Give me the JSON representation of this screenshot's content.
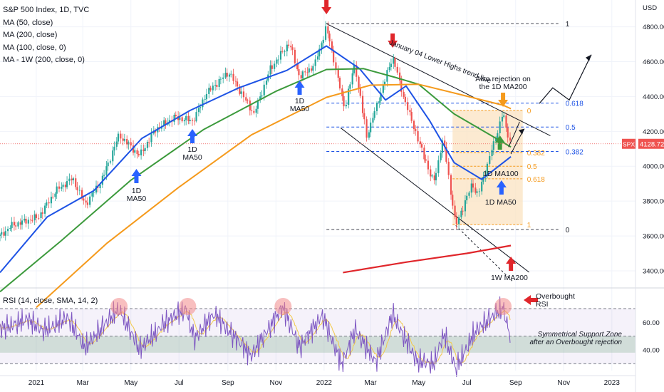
{
  "legend": {
    "title": "S&P 500 Index, 1D, TVC",
    "lines": [
      "MA (50, close)",
      "MA (200, close)",
      "MA (100, close, 0)",
      "MA - 1W (200, close, 0)"
    ],
    "rsi": "RSI (14, close, SMA, 14, 2)"
  },
  "colors": {
    "up": "#26a69a",
    "down": "#ef5350",
    "ma50": "#1e53e5",
    "ma100": "#3c9a3c",
    "ma200": "#f59a1c",
    "ma1w": "#e0262b",
    "rsi": "#7e57c2",
    "rsi_sma": "#f2c94c",
    "fib_blue": "#1e53e5",
    "fib_orange": "#f59a1c",
    "box": "#fbe3c2",
    "arrow_red": "#e0262b",
    "arrow_blue": "#2962ff",
    "arrow_green": "#3c9a3c",
    "arrow_orange": "#f59a1c"
  },
  "chart_data": {
    "type": "line",
    "symbol": "SPX",
    "last_price": "4128.72",
    "price_axis": {
      "label": "USD",
      "ticks": [
        "4800.00",
        "4600.00",
        "4400.00",
        "4200.00",
        "4000.00",
        "3800.00",
        "3600.00",
        "3400.00"
      ],
      "ylim": [
        3310,
        4880
      ]
    },
    "rsi_axis": {
      "ticks": [
        "60.00",
        "40.00"
      ],
      "ylim": [
        25,
        85
      ]
    },
    "x_ticks": [
      "2021",
      "Mar",
      "May",
      "Jul",
      "Sep",
      "Nov",
      "2022",
      "Mar",
      "May",
      "Jul",
      "Sep",
      "Nov",
      "2023"
    ],
    "date_range": [
      "2020-11-16",
      "2023-01-31"
    ],
    "price_path": [
      [
        "2020-11-16",
        3600
      ],
      [
        "2020-12-01",
        3660
      ],
      [
        "2021-01-04",
        3710
      ],
      [
        "2021-01-26",
        3860
      ],
      [
        "2021-02-16",
        3930
      ],
      [
        "2021-03-04",
        3780
      ],
      [
        "2021-03-25",
        3920
      ],
      [
        "2021-04-16",
        4180
      ],
      [
        "2021-05-12",
        4060
      ],
      [
        "2021-06-01",
        4210
      ],
      [
        "2021-06-25",
        4280
      ],
      [
        "2021-07-19",
        4260
      ],
      [
        "2021-08-05",
        4420
      ],
      [
        "2021-09-02",
        4540
      ],
      [
        "2021-10-04",
        4300
      ],
      [
        "2021-10-25",
        4560
      ],
      [
        "2021-11-18",
        4710
      ],
      [
        "2021-12-01",
        4510
      ],
      [
        "2021-12-20",
        4580
      ],
      [
        "2022-01-04",
        4800
      ],
      [
        "2022-01-27",
        4330
      ],
      [
        "2022-02-09",
        4590
      ],
      [
        "2022-02-24",
        4170
      ],
      [
        "2022-03-29",
        4630
      ],
      [
        "2022-04-11",
        4410
      ],
      [
        "2022-05-02",
        4130
      ],
      [
        "2022-05-20",
        3900
      ],
      [
        "2022-06-01",
        4160
      ],
      [
        "2022-06-17",
        3660
      ],
      [
        "2022-07-08",
        3900
      ],
      [
        "2022-07-15",
        3830
      ],
      [
        "2022-08-16",
        4305
      ],
      [
        "2022-08-19",
        4228
      ],
      [
        "2022-08-26",
        4128.72
      ]
    ],
    "series": [
      {
        "name": "MA (50, close)",
        "points": [
          [
            "2020-11-16",
            3390
          ],
          [
            "2021-01-15",
            3710
          ],
          [
            "2021-03-15",
            3860
          ],
          [
            "2021-05-15",
            4160
          ],
          [
            "2021-07-15",
            4320
          ],
          [
            "2021-09-15",
            4450
          ],
          [
            "2021-11-15",
            4550
          ],
          [
            "2022-01-04",
            4690
          ],
          [
            "2022-02-15",
            4560
          ],
          [
            "2022-03-20",
            4380
          ],
          [
            "2022-04-15",
            4460
          ],
          [
            "2022-05-15",
            4260
          ],
          [
            "2022-06-15",
            4020
          ],
          [
            "2022-07-20",
            3925
          ],
          [
            "2022-08-26",
            4055
          ]
        ]
      },
      {
        "name": "MA (100, close, 0)",
        "points": [
          [
            "2020-11-16",
            3280
          ],
          [
            "2021-02-01",
            3570
          ],
          [
            "2021-05-01",
            3920
          ],
          [
            "2021-08-01",
            4210
          ],
          [
            "2021-11-01",
            4430
          ],
          [
            "2022-01-04",
            4555
          ],
          [
            "2022-02-20",
            4560
          ],
          [
            "2022-04-01",
            4510
          ],
          [
            "2022-05-01",
            4470
          ],
          [
            "2022-06-15",
            4300
          ],
          [
            "2022-08-26",
            4110
          ]
        ]
      },
      {
        "name": "MA (200, close)",
        "points": [
          [
            "2021-01-01",
            3190
          ],
          [
            "2021-04-01",
            3560
          ],
          [
            "2021-07-01",
            3880
          ],
          [
            "2021-10-01",
            4180
          ],
          [
            "2022-01-04",
            4395
          ],
          [
            "2022-03-01",
            4465
          ],
          [
            "2022-05-01",
            4470
          ],
          [
            "2022-06-15",
            4420
          ],
          [
            "2022-08-16",
            4350
          ],
          [
            "2022-08-26",
            4330
          ]
        ]
      },
      {
        "name": "MA - 1W (200, close, 0)",
        "points": [
          [
            "2022-01-25",
            3390
          ],
          [
            "2022-04-15",
            3450
          ],
          [
            "2022-07-01",
            3500
          ],
          [
            "2022-08-26",
            3545
          ]
        ]
      }
    ],
    "fib_blue": [
      {
        "label": "1",
        "price": 4818
      },
      {
        "label": "0.618",
        "price": 4362
      },
      {
        "label": "0.5",
        "price": 4225
      },
      {
        "label": "0.382",
        "price": 4085
      },
      {
        "label": "0",
        "price": 3637
      }
    ],
    "fib_orange": [
      {
        "label": "0",
        "price": 4320
      },
      {
        "label": "0.382",
        "price": 4078
      },
      {
        "label": "0.5",
        "price": 4000
      },
      {
        "label": "0.618",
        "price": 3928
      },
      {
        "label": "1",
        "price": 3665
      }
    ],
    "rsi_levels": [
      70,
      50,
      30
    ],
    "rsi_path": [
      [
        "2020-11-16",
        55
      ],
      [
        "2020-12-20",
        62
      ],
      [
        "2021-01-10",
        54
      ],
      [
        "2021-02-10",
        63
      ],
      [
        "2021-03-04",
        42
      ],
      [
        "2021-04-16",
        70
      ],
      [
        "2021-05-12",
        40
      ],
      [
        "2021-06-10",
        58
      ],
      [
        "2021-07-10",
        70
      ],
      [
        "2021-07-20",
        48
      ],
      [
        "2021-08-15",
        66
      ],
      [
        "2021-09-30",
        36
      ],
      [
        "2021-11-10",
        71
      ],
      [
        "2021-12-01",
        42
      ],
      [
        "2021-12-30",
        65
      ],
      [
        "2022-01-24",
        29
      ],
      [
        "2022-02-09",
        55
      ],
      [
        "2022-03-08",
        31
      ],
      [
        "2022-03-29",
        66
      ],
      [
        "2022-04-28",
        32
      ],
      [
        "2022-05-20",
        30
      ],
      [
        "2022-06-02",
        52
      ],
      [
        "2022-06-17",
        26
      ],
      [
        "2022-07-10",
        52
      ],
      [
        "2022-08-16",
        71
      ],
      [
        "2022-08-26",
        48
      ]
    ],
    "annotations": {
      "trendline": "January 04 Lower Highs trend-line",
      "ma50_a": "1D\nMA50",
      "ma50_b": "1D\nMA50",
      "ma50_c": "1D\nMA50",
      "rejection": "Also rejection on\nthe 1D MA200",
      "ma100": "1D MA100",
      "ma50_d": "1D MA50",
      "ma1w": "1W MA200",
      "overbought": "Overbought\nRSI",
      "zone": "Symmetrical Support Zone\nafter an Overbought rejection"
    }
  }
}
